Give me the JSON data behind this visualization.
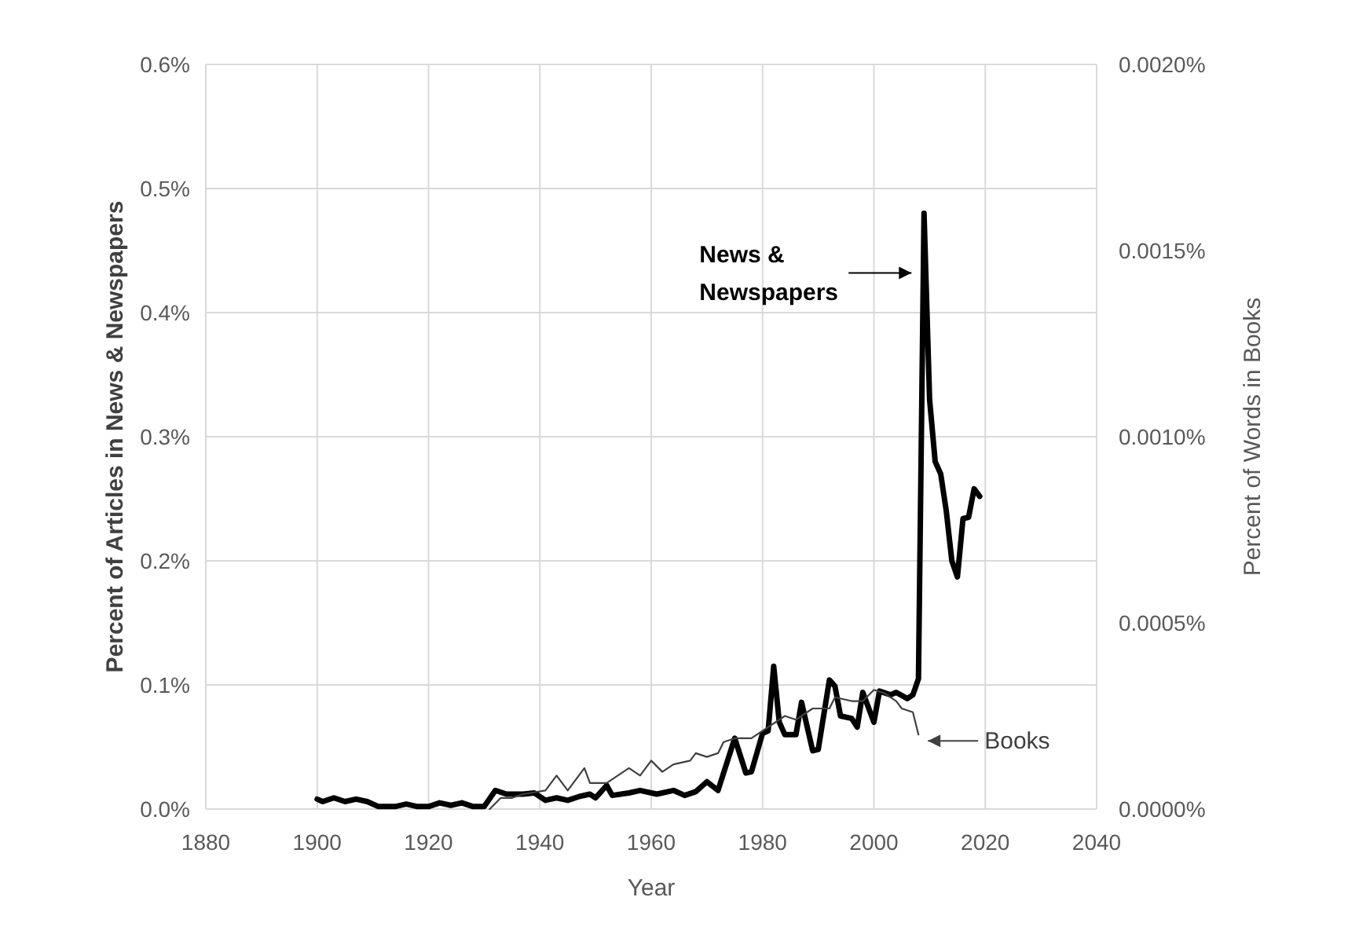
{
  "chart_data": {
    "type": "line",
    "xlabel": "Year",
    "ylabel": "Percent of Articles in News & Newspapers",
    "y2label": "Percent of Words in Books",
    "xlim": [
      1880,
      2040
    ],
    "xticks": [
      1880,
      1900,
      1920,
      1940,
      1960,
      1980,
      2000,
      2020,
      2040
    ],
    "ylim": [
      0,
      0.6
    ],
    "yticks": [
      {
        "value": 0,
        "label": "0.0%"
      },
      {
        "value": 0.1,
        "label": "0.1%"
      },
      {
        "value": 0.2,
        "label": "0.2%"
      },
      {
        "value": 0.3,
        "label": "0.3%"
      },
      {
        "value": 0.4,
        "label": "0.4%"
      },
      {
        "value": 0.5,
        "label": "0.5%"
      },
      {
        "value": 0.6,
        "label": "0.6%"
      }
    ],
    "y2lim": [
      0,
      0.002
    ],
    "y2ticks": [
      {
        "value": 0,
        "label": "0.0000%"
      },
      {
        "value": 0.0005,
        "label": "0.0005%"
      },
      {
        "value": 0.001,
        "label": "0.0010%"
      },
      {
        "value": 0.0015,
        "label": "0.0015%"
      },
      {
        "value": 0.002,
        "label": "0.0020%"
      }
    ],
    "grid": true,
    "marker": "none",
    "line_style": "solid",
    "series": [
      {
        "name": "News & Newspapers",
        "color": "#000000",
        "x": [
          1900,
          1901,
          1903,
          1905,
          1907,
          1909,
          1911,
          1914,
          1916,
          1918,
          1920,
          1922,
          1924,
          1926,
          1928,
          1930,
          1932,
          1934,
          1937,
          1939,
          1941,
          1943,
          1945,
          1947,
          1949,
          1950,
          1952,
          1953,
          1956,
          1958,
          1961,
          1964,
          1966,
          1968,
          1970,
          1972,
          1975,
          1977,
          1978,
          1980,
          1981,
          1982,
          1983,
          1984,
          1986,
          1987,
          1989,
          1990,
          1992,
          1993,
          1994,
          1996,
          1997,
          1998,
          2000,
          2001,
          2003,
          2004,
          2006,
          2007,
          2008,
          2009,
          2010,
          2011,
          2012,
          2013,
          2014,
          2015,
          2016,
          2017,
          2018,
          2019
        ],
        "values": [
          0.008,
          0.006,
          0.009,
          0.006,
          0.008,
          0.006,
          0.002,
          0.002,
          0.004,
          0.002,
          0.002,
          0.005,
          0.003,
          0.005,
          0.002,
          0.002,
          0.015,
          0.012,
          0.012,
          0.013,
          0.007,
          0.009,
          0.007,
          0.01,
          0.012,
          0.009,
          0.019,
          0.011,
          0.013,
          0.015,
          0.012,
          0.015,
          0.011,
          0.014,
          0.022,
          0.015,
          0.057,
          0.029,
          0.03,
          0.061,
          0.063,
          0.115,
          0.07,
          0.06,
          0.06,
          0.086,
          0.047,
          0.048,
          0.104,
          0.099,
          0.075,
          0.073,
          0.066,
          0.094,
          0.07,
          0.095,
          0.092,
          0.094,
          0.089,
          0.092,
          0.105,
          0.48,
          0.33,
          0.28,
          0.27,
          0.24,
          0.2,
          0.187,
          0.234,
          0.235,
          0.258,
          0.252
        ]
      },
      {
        "name": "Books",
        "color": "#404040",
        "axis": "y2",
        "x": [
          1931,
          1933,
          1935,
          1937,
          1941,
          1943,
          1945,
          1948,
          1949,
          1952,
          1956,
          1958,
          1960,
          1962,
          1964,
          1967,
          1968,
          1970,
          1972,
          1973,
          1975,
          1977,
          1978,
          1980,
          1982,
          1984,
          1986,
          1989,
          1992,
          1993,
          1996,
          1998,
          2000,
          2002,
          2004,
          2005,
          2007,
          2008
        ],
        "values": [
          0,
          3e-05,
          3e-05,
          4e-05,
          5e-05,
          9e-05,
          5e-05,
          0.00011,
          7e-05,
          7e-05,
          0.00011,
          9e-05,
          0.00013,
          0.0001,
          0.00012,
          0.00013,
          0.00015,
          0.00014,
          0.00015,
          0.00018,
          0.00019,
          0.00019,
          0.00019,
          0.00021,
          0.00023,
          0.00025,
          0.00024,
          0.00027,
          0.00027,
          0.0003,
          0.00029,
          0.00029,
          0.00032,
          0.00031,
          0.00029,
          0.00027,
          0.00026,
          0.0002
        ]
      }
    ]
  }
}
